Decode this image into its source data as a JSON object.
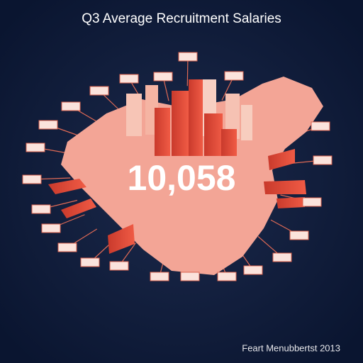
{
  "header": {
    "title": "Q3 Average Recruitment Salaries"
  },
  "headline": {
    "value": "10,058"
  },
  "footer": {
    "credit": "Feart Menubbertst 2013"
  }
}
